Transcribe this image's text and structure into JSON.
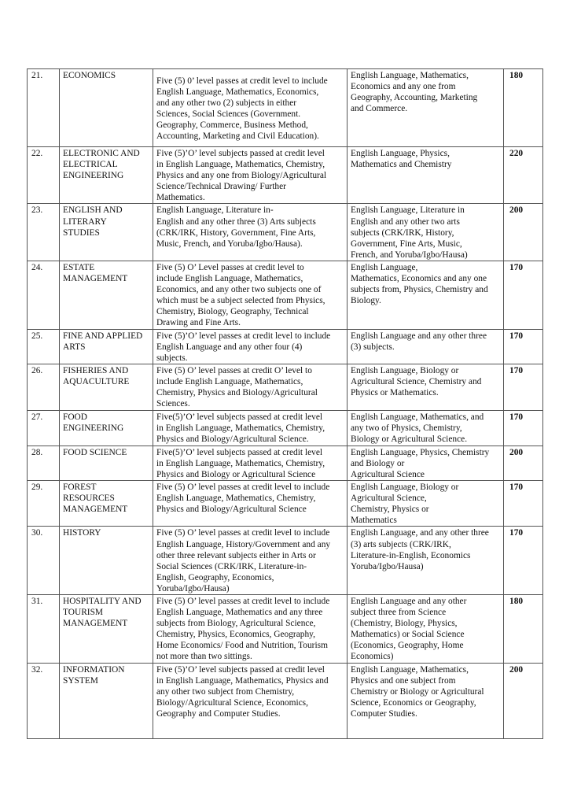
{
  "rows": [
    {
      "no": "21.",
      "course": "ECONOMICS",
      "olevel": "Five (5) 0’ level passes at credit level to include\nEnglish Language, Mathematics, Economics,\nand any other two (2) subjects in either\nSciences, Social Sciences (Government.\nGeography, Commerce, Business Method,\nAccounting, Marketing and Civil Education).",
      "utme": "English Language, Mathematics,\nEconomics and any one from\nGeography, Accounting, Marketing\nand Commerce.",
      "score": "180"
    },
    {
      "no": "22.",
      "course": "ELECTRONIC AND\nELECTRICAL\nENGINEERING",
      "olevel": "Five (5)’O’ level subjects passed at credit level\nin English Language, Mathematics, Chemistry,\nPhysics and any one from Biology/Agricultural\nScience/Technical Drawing/ Further\nMathematics.",
      "utme": "English Language, Physics,\nMathematics and Chemistry",
      "score": "220"
    },
    {
      "no": "23.",
      "course": "ENGLISH AND\nLITERARY\nSTUDIES",
      "olevel": "English Language, Literature in-\nEnglish and any other three (3) Arts subjects\n(CRK/IRK, History, Government, Fine Arts,\nMusic, French, and Yoruba/Igbo/Hausa).",
      "utme": "English Language, Literature in\nEnglish and any other two arts\nsubjects (CRK/IRK, History,\nGovernment, Fine Arts, Music,\nFrench, and Yoruba/Igbo/Hausa)",
      "score": "200"
    },
    {
      "no": "24.",
      "course": "ESTATE\nMANAGEMENT",
      "olevel": "Five (5) O’ Level passes at credit level to\ninclude English Language, Mathematics,\nEconomics, and any other two subjects one of\nwhich must be a subject selected from  Physics,\nChemistry, Biology, Geography, Technical\nDrawing and Fine Arts.",
      "utme": "English Language,\nMathematics, Economics and any one\nsubjects from, Physics, Chemistry and\nBiology.",
      "score": "170"
    },
    {
      "no": "25.",
      "course": "FINE AND APPLIED\nARTS",
      "olevel": "Five (5)’O’ level passes at credit level to include\nEnglish Language and any other four (4)\nsubjects.",
      "utme": "English Language and any other three\n(3) subjects.",
      "score": "170"
    },
    {
      "no": "26.",
      "course": "FISHERIES AND\nAQUACULTURE",
      "olevel": "Five (5) O’ level passes at credit O’ level to\ninclude English Language, Mathematics,\nChemistry, Physics and Biology/Agricultural\nSciences.",
      "utme": "English Language, Biology or\nAgricultural Science, Chemistry and\nPhysics or Mathematics.",
      "score": "170"
    },
    {
      "no": "27.",
      "course": "FOOD\nENGINEERING",
      "olevel": "Five(5)’O’ level subjects passed at credit level\nin English Language,   Mathematics, Chemistry,\nPhysics and Biology/Agricultural Science.",
      "utme": "English Language, Mathematics, and\nany two of Physics, Chemistry,\nBiology or Agricultural Science.",
      "score": "170"
    },
    {
      "no": "28.",
      "course": "FOOD SCIENCE",
      "olevel": "Five(5)’O’ level subjects passed at credit level\nin English Language, Mathematics, Chemistry,\nPhysics and Biology or Agricultural Science",
      "utme": "English Language, Physics, Chemistry\nand Biology or\nAgricultural Science",
      "score": "200"
    },
    {
      "no": "29.",
      "course": "FOREST\nRESOURCES\nMANAGEMENT",
      "olevel": "Five (5) O’ level passes at credit level to include\nEnglish Language, Mathematics,  Chemistry,\nPhysics and Biology/Agricultural Science",
      "utme": "English Language, Biology or\nAgricultural Science,\nChemistry, Physics or\nMathematics",
      "score": "170"
    },
    {
      "no": "30.",
      "course": "HISTORY",
      "olevel": "Five (5) O’ level passes at credit level to include\nEnglish Language, History/Government and any\nother three relevant subjects either in Arts or\nSocial Sciences (CRK/IRK, Literature-in-\nEnglish, Geography, Economics,\nYoruba/Igbo/Hausa)",
      "utme": "English Language, and any other three\n(3) arts subjects (CRK/IRK,\nLiterature-in-English, Economics\nYoruba/Igbo/Hausa)",
      "score": "170"
    },
    {
      "no": "31.",
      "course": "HOSPITALITY AND\nTOURISM\nMANAGEMENT",
      "olevel": "Five (5) O’ level passes at credit level to include\nEnglish Language, Mathematics and any three\nsubjects from Biology, Agricultural Science,\nChemistry, Physics, Economics, Geography,\nHome Economics/ Food and Nutrition, Tourism\nnot more than two sittings.",
      "utme": "English Language and any other\nsubject three from Science\n(Chemistry, Biology, Physics,\nMathematics) or Social Science\n(Economics, Geography, Home\nEconomics)",
      "score": "180"
    },
    {
      "no": "32.",
      "course": "INFORMATION\nSYSTEM",
      "olevel": "Five (5)’O’ level subjects passed at credit level\nin  English Language, Mathematics, Physics and\nany other two subject from Chemistry,\nBiology/Agricultural Science, Economics,\nGeography and Computer Studies.",
      "utme": "English Language, Mathematics,\nPhysics and one subject from\nChemistry or Biology or Agricultural\nScience, Economics or Geography,\nComputer Studies.",
      "score": "200"
    }
  ]
}
